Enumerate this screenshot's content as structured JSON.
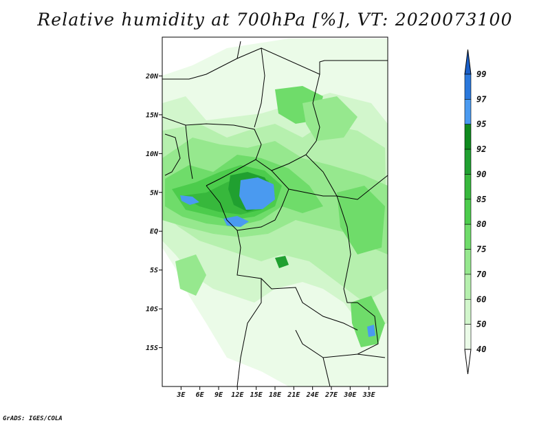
{
  "title": "Relative humidity at 700hPa [%], VT: 2020073100",
  "credit": "GrADS: IGES/COLA",
  "map": {
    "lon_range": [
      0,
      36
    ],
    "lat_range": [
      -20,
      25
    ],
    "lat_ticks": [
      "20N",
      "15N",
      "10N",
      "5N",
      "EQ",
      "5S",
      "10S",
      "15S"
    ],
    "lat_tick_values": [
      20,
      15,
      10,
      5,
      0,
      -5,
      -10,
      -15
    ],
    "lon_ticks": [
      "3E",
      "6E",
      "9E",
      "12E",
      "15E",
      "18E",
      "21E",
      "24E",
      "27E",
      "30E",
      "33E"
    ],
    "lon_tick_values": [
      3,
      6,
      9,
      12,
      15,
      18,
      21,
      24,
      27,
      30,
      33
    ]
  },
  "colorbar": {
    "labels": [
      "99",
      "97",
      "95",
      "92",
      "90",
      "85",
      "80",
      "75",
      "70",
      "60",
      "50",
      "40"
    ],
    "colors": [
      "#1a5fc8",
      "#2a78dc",
      "#4a9af0",
      "#0f8a1e",
      "#20a030",
      "#37b83c",
      "#4ccc4c",
      "#6fdc6a",
      "#96e88e",
      "#b6f0ae",
      "#d2f6cc",
      "#ebfbe8",
      "#ffffff"
    ]
  }
}
